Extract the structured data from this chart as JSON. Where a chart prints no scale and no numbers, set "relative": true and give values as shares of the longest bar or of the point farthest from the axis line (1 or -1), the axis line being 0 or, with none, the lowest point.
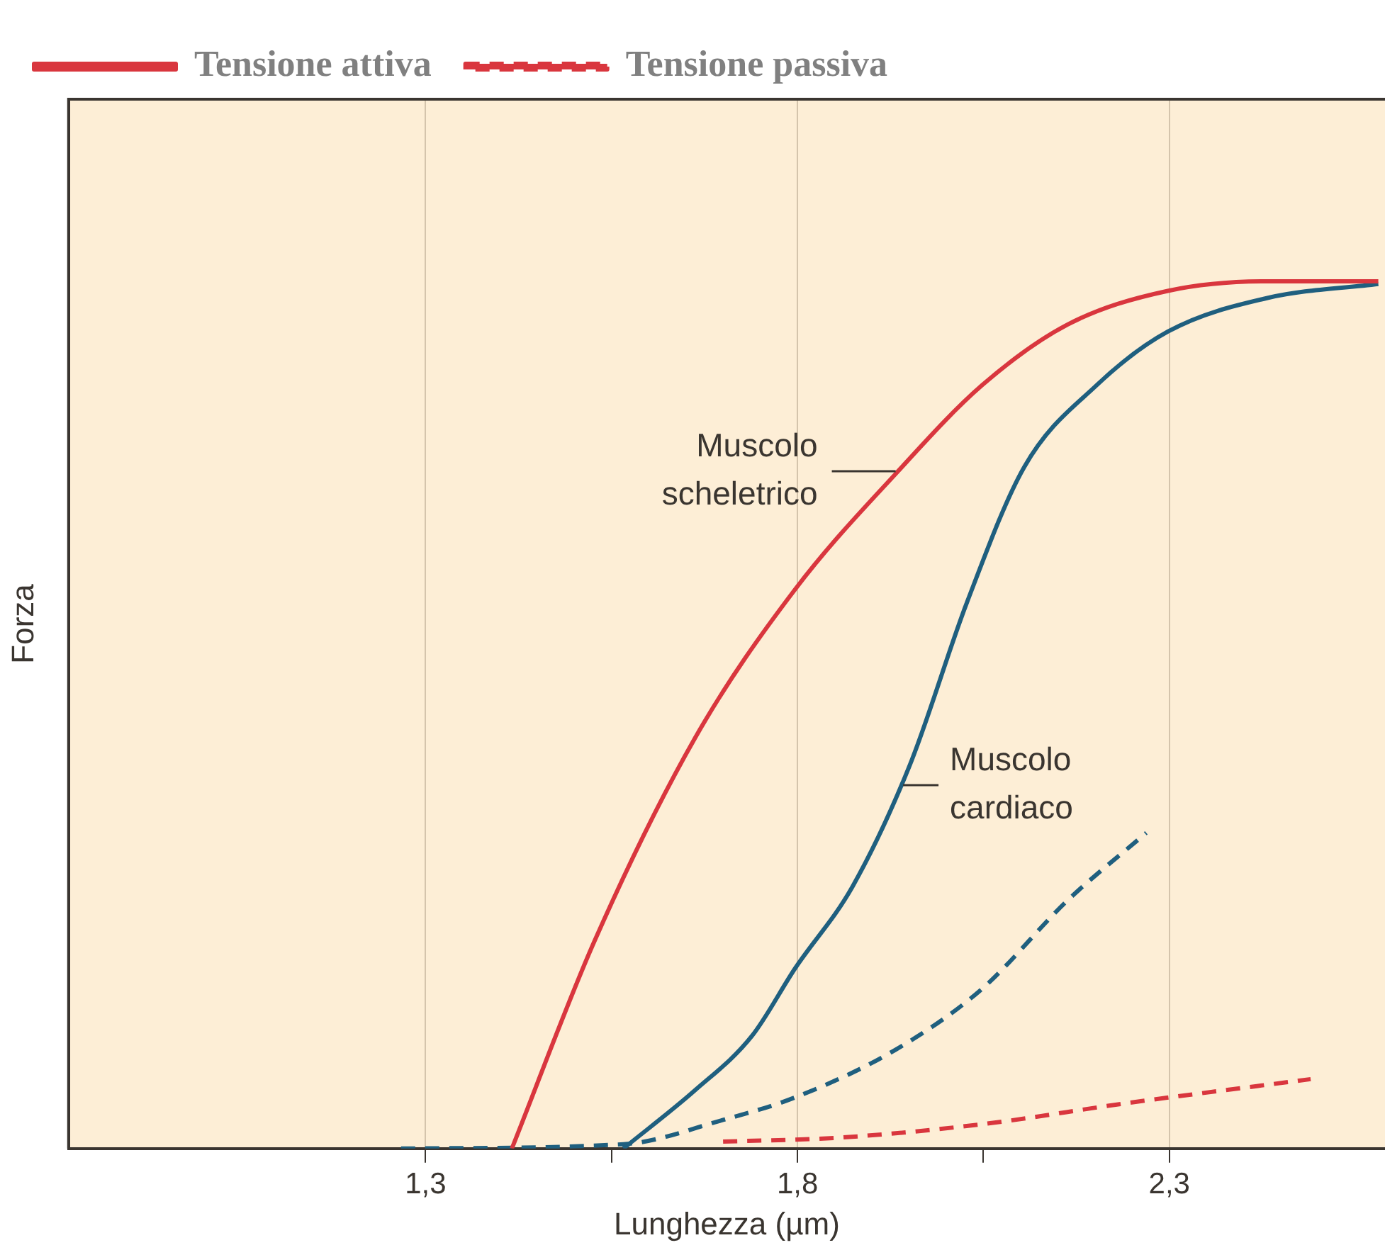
{
  "chart_data": {
    "type": "line",
    "xlabel": "Lunghezza (µm)",
    "ylabel": "Forza",
    "relative": true,
    "xlim": [
      0.82,
      2.59
    ],
    "xticks": [
      {
        "value": 1.3,
        "label": "1,3"
      },
      {
        "value": 1.55,
        "label": null
      },
      {
        "value": 1.8,
        "label": "1,8"
      },
      {
        "value": 2.05,
        "label": null
      },
      {
        "value": 2.3,
        "label": "2,3"
      }
    ],
    "grid": "x",
    "legend": "top left",
    "marker": "none",
    "series": [
      {
        "name": "Tensione attiva",
        "color": "#d9363e",
        "line_style": "solid",
        "x": [
          1.416,
          1.527,
          1.662,
          1.797,
          1.932,
          2.048,
          2.163,
          2.298,
          2.433,
          2.581
        ],
        "values": [
          0,
          0.239,
          0.473,
          0.645,
          0.778,
          0.88,
          0.95,
          0.989,
          1,
          1
        ]
      },
      {
        "color": "#1f5f7f",
        "line_style": "solid",
        "x": [
          1.566,
          1.662,
          1.739,
          1.797,
          1.874,
          1.951,
          2.028,
          2.105,
          2.202,
          2.298,
          2.433,
          2.581
        ],
        "values": [
          0,
          0.067,
          0.13,
          0.208,
          0.302,
          0.442,
          0.63,
          0.786,
          0.88,
          0.942,
          0.981,
          0.997
        ]
      },
      {
        "color": "#1f5f7f",
        "line_style": "dashed",
        "x": [
          1.267,
          1.566,
          1.7,
          1.797,
          1.932,
          2.048,
          2.163,
          2.269
        ],
        "values": [
          0,
          0.005,
          0.033,
          0.059,
          0.114,
          0.184,
          0.286,
          0.364
        ]
      },
      {
        "name": "Tensione passiva",
        "color": "#d9363e",
        "line_style": "dashed",
        "x": [
          1.7,
          1.855,
          2.048,
          2.24,
          2.49
        ],
        "values": [
          0.008,
          0.0125,
          0.028,
          0.052,
          0.08
        ]
      }
    ],
    "annotations": [
      {
        "text": "Muscolo scheletrico",
        "x": 1.932,
        "y": 0.781
      },
      {
        "text": "Muscolo cardiaco",
        "x": 1.942,
        "y": 0.419
      }
    ]
  }
}
